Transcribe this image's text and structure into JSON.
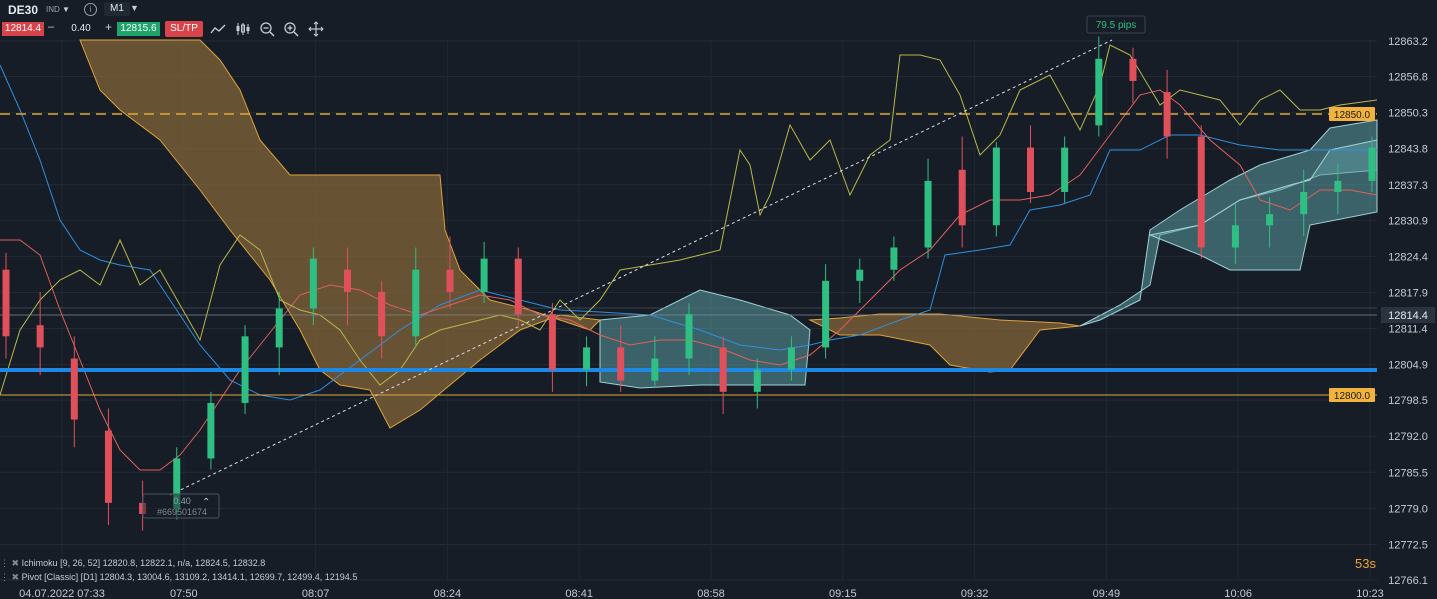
{
  "toolbar": {
    "symbol": "DE30",
    "symbol_type": "IND",
    "timeframe": "M1",
    "sell_price": "12814.4",
    "lot_size": "0.40",
    "buy_price": "12815.6",
    "sltp_label": "SL/TP",
    "minus": "–",
    "plus": "+"
  },
  "y_axis": {
    "ticks": [
      "12863.2",
      "12856.8",
      "12850.3",
      "12843.8",
      "12837.3",
      "12830.9",
      "12824.4",
      "12817.9",
      "12811.4",
      "12804.9",
      "12798.5",
      "12792.0",
      "12785.5",
      "12779.0",
      "12772.5",
      "12766.1"
    ],
    "bid_marker": "12814.4",
    "level_marker_1": "12850.0",
    "level_marker_2": "12800.0"
  },
  "x_axis": {
    "labels": [
      "04.07.2022 07:33",
      "07:50",
      "08:07",
      "08:24",
      "08:41",
      "08:58",
      "09:15",
      "09:32",
      "09:49",
      "10:06",
      "10:23"
    ]
  },
  "measure_label": "79.5 pips",
  "position_marker": {
    "lot": "0.40",
    "id": "#669501674"
  },
  "indicators": {
    "ichimoku": "Ichimoku [9, 26, 52] 12820.8, 12822.1, n/a, 12824.5, 12832.8",
    "pivot": "Pivot [Classic] [D1] 12804.3, 13004.6, 13109.2, 13414.1, 12699.7, 12499.4, 12194.5"
  },
  "timer": "53s",
  "colors": {
    "background": "#161d26",
    "bull": "#2fbf82",
    "bear": "#e0505a",
    "cloud_bear": "#8a6a3a",
    "cloud_bull": "#5c9aa0",
    "pivot_line": "#1e88e5",
    "level_line": "#e0a83a"
  },
  "chart_data": {
    "type": "candlestick",
    "symbol": "DE30",
    "timeframe": "M1",
    "x_labels": [
      "04.07.2022 07:33",
      "07:50",
      "08:07",
      "08:24",
      "08:41",
      "08:58",
      "09:15",
      "09:32",
      "09:49",
      "10:06",
      "10:23"
    ],
    "ylim": [
      12766.1,
      12866.0
    ],
    "horizontal_levels": [
      {
        "value": 12850.0,
        "style": "dashed",
        "color": "#e0a83a"
      },
      {
        "value": 12800.0,
        "style": "solid",
        "color": "#e0a83a"
      },
      {
        "value": 12804.3,
        "style": "solid-thick",
        "color": "#1e88e5"
      },
      {
        "value": 12814.4,
        "style": "bid"
      }
    ],
    "candles_approx": [
      {
        "t": "07:33",
        "o": 12822,
        "h": 12825,
        "l": 12806,
        "c": 12810
      },
      {
        "t": "07:38",
        "o": 12812,
        "h": 12818,
        "l": 12803,
        "c": 12808
      },
      {
        "t": "07:43",
        "o": 12806,
        "h": 12810,
        "l": 12790,
        "c": 12795
      },
      {
        "t": "07:47",
        "o": 12793,
        "h": 12797,
        "l": 12776,
        "c": 12780
      },
      {
        "t": "07:50",
        "o": 12780,
        "h": 12784,
        "l": 12775,
        "c": 12778
      },
      {
        "t": "07:54",
        "o": 12779,
        "h": 12790,
        "l": 12777,
        "c": 12788
      },
      {
        "t": "07:58",
        "o": 12788,
        "h": 12800,
        "l": 12786,
        "c": 12798
      },
      {
        "t": "08:02",
        "o": 12798,
        "h": 12812,
        "l": 12796,
        "c": 12810
      },
      {
        "t": "08:07",
        "o": 12808,
        "h": 12818,
        "l": 12803,
        "c": 12815
      },
      {
        "t": "08:11",
        "o": 12815,
        "h": 12826,
        "l": 12812,
        "c": 12824
      },
      {
        "t": "08:16",
        "o": 12822,
        "h": 12826,
        "l": 12812,
        "c": 12818
      },
      {
        "t": "08:20",
        "o": 12818,
        "h": 12820,
        "l": 12806,
        "c": 12810
      },
      {
        "t": "08:24",
        "o": 12810,
        "h": 12826,
        "l": 12808,
        "c": 12822
      },
      {
        "t": "08:28",
        "o": 12822,
        "h": 12828,
        "l": 12815,
        "c": 12818
      },
      {
        "t": "08:33",
        "o": 12818,
        "h": 12827,
        "l": 12816,
        "c": 12824
      },
      {
        "t": "08:37",
        "o": 12824,
        "h": 12826,
        "l": 12812,
        "c": 12814
      },
      {
        "t": "08:41",
        "o": 12814,
        "h": 12816,
        "l": 12800,
        "c": 12804
      },
      {
        "t": "08:45",
        "o": 12804,
        "h": 12810,
        "l": 12801,
        "c": 12808
      },
      {
        "t": "08:50",
        "o": 12808,
        "h": 12812,
        "l": 12800,
        "c": 12802
      },
      {
        "t": "08:54",
        "o": 12802,
        "h": 12810,
        "l": 12801,
        "c": 12806
      },
      {
        "t": "08:58",
        "o": 12806,
        "h": 12816,
        "l": 12803,
        "c": 12814
      },
      {
        "t": "09:02",
        "o": 12808,
        "h": 12810,
        "l": 12796,
        "c": 12800
      },
      {
        "t": "09:07",
        "o": 12800,
        "h": 12806,
        "l": 12797,
        "c": 12804
      },
      {
        "t": "09:11",
        "o": 12804,
        "h": 12810,
        "l": 12802,
        "c": 12808
      },
      {
        "t": "09:15",
        "o": 12808,
        "h": 12823,
        "l": 12806,
        "c": 12820
      },
      {
        "t": "09:19",
        "o": 12820,
        "h": 12824,
        "l": 12816,
        "c": 12822
      },
      {
        "t": "09:24",
        "o": 12822,
        "h": 12828,
        "l": 12820,
        "c": 12826
      },
      {
        "t": "09:28",
        "o": 12826,
        "h": 12842,
        "l": 12824,
        "c": 12838
      },
      {
        "t": "09:32",
        "o": 12840,
        "h": 12846,
        "l": 12826,
        "c": 12830
      },
      {
        "t": "09:36",
        "o": 12830,
        "h": 12845,
        "l": 12828,
        "c": 12844
      },
      {
        "t": "09:41",
        "o": 12844,
        "h": 12848,
        "l": 12834,
        "c": 12836
      },
      {
        "t": "09:45",
        "o": 12836,
        "h": 12846,
        "l": 12834,
        "c": 12844
      },
      {
        "t": "09:49",
        "o": 12848,
        "h": 12864,
        "l": 12846,
        "c": 12860
      },
      {
        "t": "09:53",
        "o": 12860,
        "h": 12862,
        "l": 12852,
        "c": 12856
      },
      {
        "t": "09:58",
        "o": 12854,
        "h": 12858,
        "l": 12842,
        "c": 12846
      },
      {
        "t": "10:02",
        "o": 12846,
        "h": 12848,
        "l": 12824,
        "c": 12826
      },
      {
        "t": "10:06",
        "o": 12826,
        "h": 12834,
        "l": 12823,
        "c": 12830
      },
      {
        "t": "10:10",
        "o": 12830,
        "h": 12835,
        "l": 12826,
        "c": 12832
      },
      {
        "t": "10:15",
        "o": 12832,
        "h": 12840,
        "l": 12828,
        "c": 12836
      },
      {
        "t": "10:19",
        "o": 12836,
        "h": 12841,
        "l": 12832,
        "c": 12838
      },
      {
        "t": "10:23",
        "o": 12838,
        "h": 12846,
        "l": 12836,
        "c": 12844
      }
    ]
  }
}
